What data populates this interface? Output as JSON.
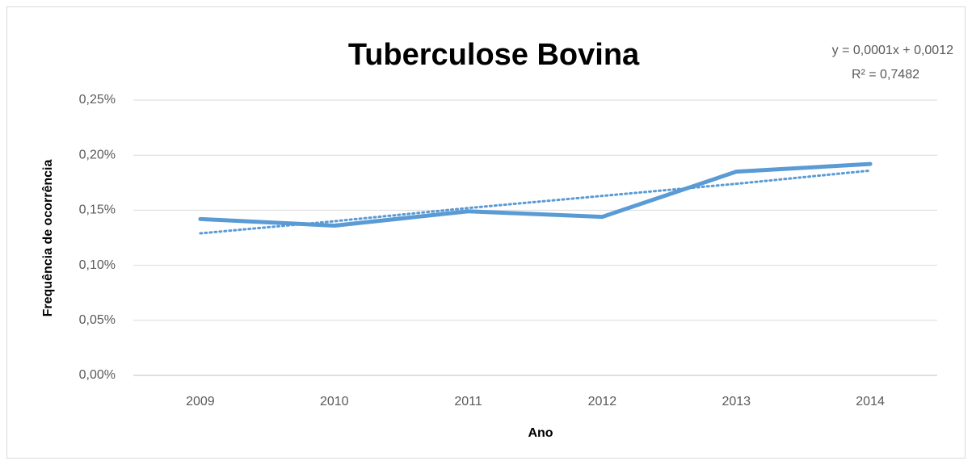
{
  "chart_data": {
    "type": "line",
    "title": "Tuberculose Bovina",
    "annotations": [
      "y = 0,0001x + 0,0012",
      "R² = 0,7482"
    ],
    "x_label": "Ano",
    "y_label": "Frequência de ocorrência",
    "categories": [
      "2009",
      "2010",
      "2011",
      "2012",
      "2013",
      "2014"
    ],
    "series": [
      {
        "color": "#5b9bd5",
        "values": [
          0.142,
          0.136,
          0.149,
          0.144,
          0.185,
          0.192
        ]
      }
    ],
    "trendline": {
      "color": "#5b9bd5",
      "values": [
        0.129,
        0.14,
        0.152,
        0.163,
        0.174,
        0.186
      ]
    },
    "ylim": [
      0,
      0.25
    ],
    "yticks": [
      {
        "value": 0,
        "label": "0,00%"
      },
      {
        "value": 0.05,
        "label": "0,05%"
      },
      {
        "value": 0.1,
        "label": "0,10%"
      },
      {
        "value": 0.15,
        "label": "0,15%"
      },
      {
        "value": 0.2,
        "label": "0,20%"
      },
      {
        "value": 0.25,
        "label": "0,25%"
      }
    ],
    "grid": true
  }
}
